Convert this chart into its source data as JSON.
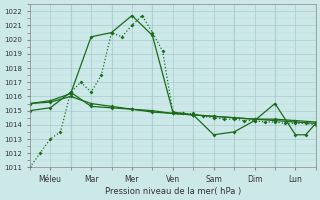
{
  "title": "Pression niveau de la mer( hPa )",
  "bg_color": "#cce8e8",
  "grid_major_color": "#aacccc",
  "grid_minor_color": "#bbdddd",
  "line_color": "#1a6b1a",
  "xlim": [
    0,
    7
  ],
  "ylim": [
    1011,
    1022.5
  ],
  "yticks": [
    1011,
    1012,
    1013,
    1014,
    1015,
    1016,
    1017,
    1018,
    1019,
    1020,
    1021,
    1022
  ],
  "xtick_labels": [
    "Méleu",
    "Mar",
    "Mer",
    "Ven",
    "Sam",
    "Dim",
    "Lun"
  ],
  "xtick_positions": [
    0.5,
    1.5,
    2.5,
    3.5,
    4.5,
    5.5,
    6.5
  ],
  "vlines": [
    1,
    2,
    3,
    4,
    5,
    6
  ],
  "line_dotted_x": [
    0,
    0.25,
    0.5,
    0.75,
    1.0,
    1.25,
    1.5,
    1.75,
    2.0,
    2.25,
    2.5,
    2.75,
    3.0,
    3.25,
    3.5,
    3.75,
    4.0,
    4.25,
    4.5,
    4.75,
    5.0,
    5.25,
    5.5,
    5.75,
    6.0,
    6.25,
    6.5,
    6.75,
    7.0
  ],
  "line_dotted_y": [
    1011,
    1012,
    1013,
    1013.5,
    1016.3,
    1017.0,
    1016.3,
    1017.5,
    1020.5,
    1020.2,
    1021.0,
    1021.7,
    1020.5,
    1019.2,
    1014.9,
    1014.8,
    1014.8,
    1014.6,
    1014.5,
    1014.4,
    1014.4,
    1014.3,
    1014.3,
    1014.2,
    1014.2,
    1014.1,
    1014.1,
    1014.1,
    1014.0
  ],
  "line1_x": [
    0,
    0.5,
    1.0,
    1.5,
    2.0,
    2.5,
    3.0,
    3.5,
    4.0,
    4.5,
    5.0,
    5.5,
    6.0,
    6.5,
    7.0
  ],
  "line1_y": [
    1015.0,
    1015.2,
    1016.3,
    1015.3,
    1015.2,
    1015.1,
    1014.9,
    1014.8,
    1014.7,
    1014.6,
    1014.5,
    1014.4,
    1014.4,
    1014.3,
    1014.2
  ],
  "line2_x": [
    0,
    0.5,
    1.0,
    1.5,
    2.0,
    2.5,
    3.0,
    3.5,
    4.0,
    4.5,
    5.0,
    5.5,
    6.0,
    6.5,
    7.0
  ],
  "line2_y": [
    1015.5,
    1015.6,
    1016.0,
    1015.5,
    1015.3,
    1015.1,
    1015.0,
    1014.8,
    1014.7,
    1014.6,
    1014.5,
    1014.4,
    1014.3,
    1014.2,
    1014.1
  ],
  "line3_x": [
    0,
    0.5,
    1.0,
    1.5,
    2.0,
    2.5,
    3.0,
    3.5,
    4.0,
    4.5,
    5.0,
    5.5,
    6.0,
    6.5,
    6.75,
    7.0
  ],
  "line3_y": [
    1015.5,
    1015.7,
    1016.2,
    1020.2,
    1020.5,
    1021.7,
    1020.3,
    1014.9,
    1014.7,
    1013.3,
    1013.5,
    1014.3,
    1015.5,
    1013.3,
    1013.3,
    1014.1
  ]
}
